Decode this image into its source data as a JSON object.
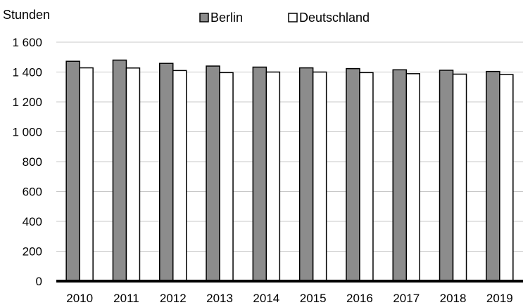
{
  "chart_data": {
    "type": "bar",
    "ylabel": "Stunden",
    "categories": [
      "2010",
      "2011",
      "2012",
      "2013",
      "2014",
      "2015",
      "2016",
      "2017",
      "2018",
      "2019"
    ],
    "series": [
      {
        "name": "Berlin",
        "color": "#8c8c8c",
        "values": [
          1472,
          1480,
          1458,
          1440,
          1433,
          1428,
          1423,
          1415,
          1412,
          1404
        ]
      },
      {
        "name": "Deutschland",
        "color": "#ffffff",
        "values": [
          1428,
          1427,
          1410,
          1396,
          1400,
          1400,
          1396,
          1389,
          1386,
          1383
        ]
      }
    ],
    "ylim": [
      0,
      1600
    ],
    "yticks": [
      0,
      200,
      400,
      600,
      800,
      1000,
      1200,
      1400,
      1600
    ],
    "ytick_labels": [
      "0",
      "200",
      "400",
      "600",
      "800",
      "1 000",
      "1 200",
      "1 400",
      "1 600"
    ],
    "grid": true,
    "legend_position": "top"
  }
}
